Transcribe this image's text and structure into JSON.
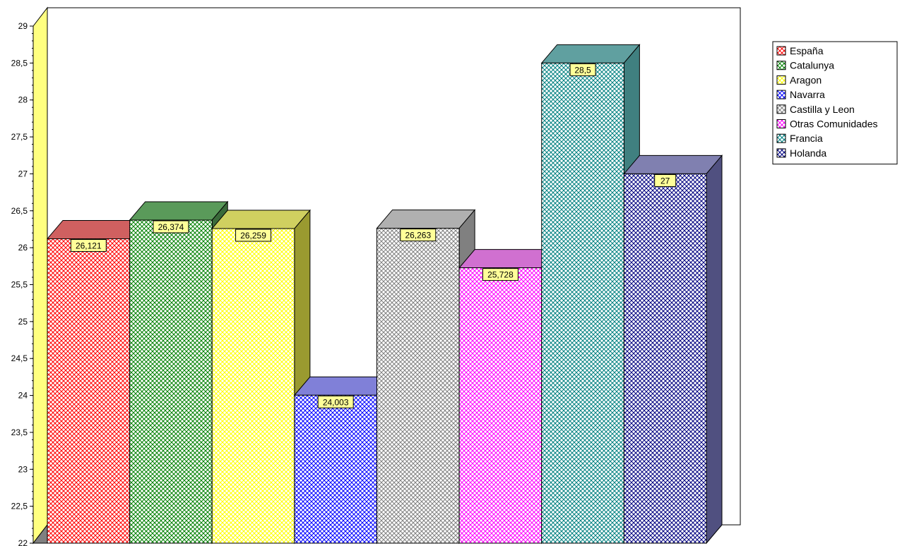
{
  "chart_data": {
    "type": "bar",
    "title": "",
    "xlabel": "",
    "ylabel": "",
    "ylim": [
      22,
      29
    ],
    "ytick_step": 0.5,
    "ytick_labels": [
      "22",
      "22,5",
      "23",
      "23,5",
      "24",
      "24,5",
      "25",
      "25,5",
      "26",
      "26,5",
      "27",
      "27,5",
      "28",
      "28,5",
      "29"
    ],
    "three_d": true,
    "fill_pattern": "crosshatch",
    "legend_position": "top-right",
    "series": [
      {
        "name": "España",
        "value": 26.121,
        "label": "26,121",
        "color": "#ff0000",
        "top_color": "#d06060",
        "side_color": "#a04040"
      },
      {
        "name": "Catalunya",
        "value": 26.374,
        "label": "26,374",
        "color": "#008000",
        "top_color": "#5a9a5a",
        "side_color": "#3a6a3a"
      },
      {
        "name": "Aragon",
        "value": 26.259,
        "label": "26,259",
        "color": "#ffff00",
        "top_color": "#d0d060",
        "side_color": "#9a9a30"
      },
      {
        "name": "Navarra",
        "value": 24.003,
        "label": "24,003",
        "color": "#0000ff",
        "top_color": "#8080d8",
        "side_color": "#5050a0"
      },
      {
        "name": "Castilla y Leon",
        "value": 26.263,
        "label": "26,263",
        "color": "#808080",
        "top_color": "#b0b0b0",
        "side_color": "#808080"
      },
      {
        "name": "Otras Comunidades",
        "value": 25.728,
        "label": "25,728",
        "color": "#ff00ff",
        "top_color": "#d070d0",
        "side_color": "#a050a0"
      },
      {
        "name": "Francia",
        "value": 28.5,
        "label": "28,5",
        "color": "#008080",
        "top_color": "#60a0a0",
        "side_color": "#408080"
      },
      {
        "name": "Holanda",
        "value": 27.0,
        "label": "27",
        "color": "#000080",
        "top_color": "#8080b0",
        "side_color": "#505080"
      }
    ],
    "colors": {
      "back_wall": "#ffffff",
      "left_wall": "#ffff80",
      "floor": "#808080",
      "label_bg": "#ffff99"
    }
  }
}
